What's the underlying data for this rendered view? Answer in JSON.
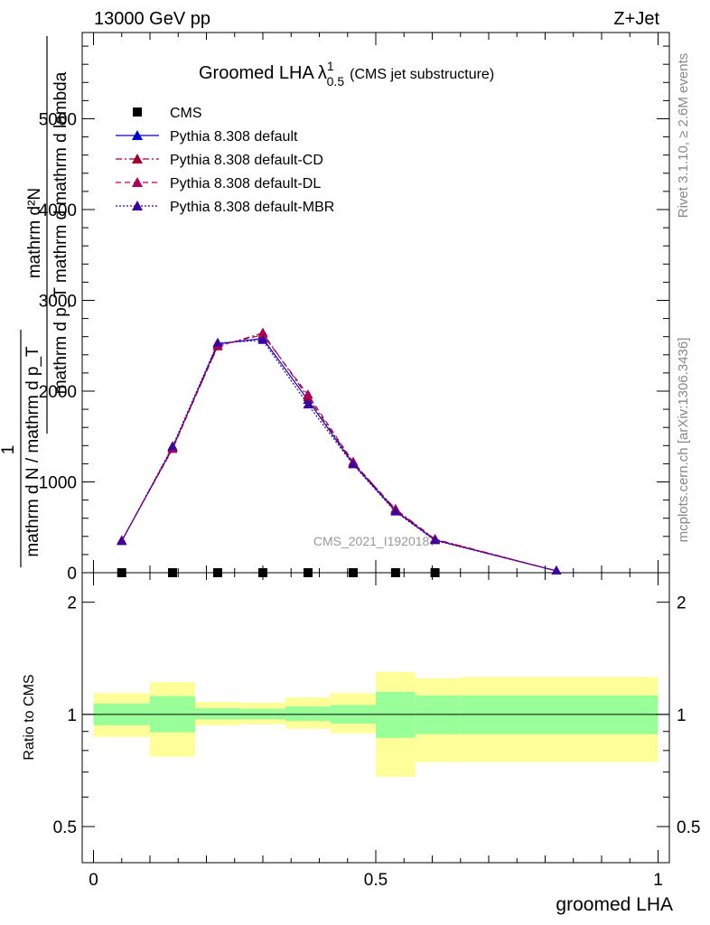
{
  "header": {
    "left": "13000 GeV pp",
    "right": "Z+Jet"
  },
  "title": {
    "main": "Groomed LHA",
    "lambda": "λ",
    "sup": "1",
    "sub": "0.5",
    "suffix": "(CMS jet substructure)"
  },
  "side_labels": {
    "rivet": "Rivet 3.1.10, ≥ 2.6M events",
    "mcplots": "mcplots.cern.ch [arXiv:1306.3436]"
  },
  "watermark": "CMS_2021_I1920187",
  "ylabel_main": {
    "numerator": "mathrm d²N",
    "denominator": "mathrm d p_T mathrm d mathrm d lambda",
    "prefix_num": "1",
    "prefix_den": "mathrm d N / mathrm d p_T"
  },
  "ylabel_ratio": "Ratio to CMS",
  "xlabel": "groomed LHA",
  "colors": {
    "cms": "#000000",
    "default": "#0000cc",
    "cd": "#a0002a",
    "dl": "#b0005a",
    "mbr": "#3a00a0",
    "band_inner": "#99ff99",
    "band_outer": "#ffff99"
  },
  "chart_data": {
    "type": "line",
    "x_ticks": [
      "0",
      "0.5",
      "1"
    ],
    "y_ticks_main": [
      "0",
      "1000",
      "2000",
      "3000",
      "4000",
      "5000"
    ],
    "y_ticks_ratio": [
      "0.5",
      "1",
      "2"
    ],
    "xlim": [
      -0.02,
      1.02
    ],
    "ylim_main": [
      0,
      5950
    ],
    "ylim_ratio": [
      0.4,
      2.4
    ],
    "ratio_log_scale": true,
    "legend_position": "top-left",
    "legend": [
      {
        "key": "cms",
        "label": "CMS",
        "marker": "square",
        "line": "none"
      },
      {
        "key": "default",
        "label": "Pythia 8.308 default",
        "marker": "triangle",
        "line": "solid"
      },
      {
        "key": "cd",
        "label": "Pythia 8.308 default-CD",
        "marker": "triangle",
        "line": "dashdot"
      },
      {
        "key": "dl",
        "label": "Pythia 8.308 default-DL",
        "marker": "triangle",
        "line": "dashed"
      },
      {
        "key": "mbr",
        "label": "Pythia 8.308 default-MBR",
        "marker": "triangle",
        "line": "dotted"
      }
    ],
    "cms": {
      "x": [
        0.05,
        0.14,
        0.22,
        0.3,
        0.38,
        0.46,
        0.535,
        0.605
      ],
      "y": [
        0,
        0,
        0,
        0,
        0,
        0,
        0,
        0
      ]
    },
    "series": [
      {
        "key": "default",
        "x": [
          0.05,
          0.14,
          0.22,
          0.3,
          0.38,
          0.46,
          0.535,
          0.605,
          0.82
        ],
        "y": [
          350,
          1370,
          2520,
          2580,
          1900,
          1200,
          680,
          360,
          20
        ]
      },
      {
        "key": "cd",
        "x": [
          0.05,
          0.14,
          0.22,
          0.3,
          0.38,
          0.46,
          0.535,
          0.605,
          0.82
        ],
        "y": [
          350,
          1380,
          2490,
          2640,
          1930,
          1210,
          700,
          370,
          20
        ]
      },
      {
        "key": "dl",
        "x": [
          0.05,
          0.14,
          0.22,
          0.3,
          0.38,
          0.46,
          0.535,
          0.605,
          0.82
        ],
        "y": [
          355,
          1360,
          2500,
          2620,
          1960,
          1220,
          690,
          365,
          20
        ]
      },
      {
        "key": "mbr",
        "x": [
          0.05,
          0.14,
          0.22,
          0.3,
          0.38,
          0.46,
          0.535,
          0.605,
          0.82
        ],
        "y": [
          345,
          1390,
          2530,
          2560,
          1850,
          1190,
          670,
          355,
          20
        ]
      }
    ],
    "ratio_bands": [
      {
        "x0": 0.0,
        "x1": 0.1,
        "inner": [
          0.935,
          1.07
        ],
        "outer": [
          0.87,
          1.14
        ]
      },
      {
        "x0": 0.1,
        "x1": 0.18,
        "inner": [
          0.895,
          1.12
        ],
        "outer": [
          0.77,
          1.22
        ]
      },
      {
        "x0": 0.18,
        "x1": 0.26,
        "inner": [
          0.97,
          1.04
        ],
        "outer": [
          0.935,
          1.08
        ]
      },
      {
        "x0": 0.26,
        "x1": 0.34,
        "inner": [
          0.97,
          1.035
        ],
        "outer": [
          0.94,
          1.075
        ]
      },
      {
        "x0": 0.34,
        "x1": 0.42,
        "inner": [
          0.96,
          1.05
        ],
        "outer": [
          0.915,
          1.11
        ]
      },
      {
        "x0": 0.42,
        "x1": 0.5,
        "inner": [
          0.945,
          1.06
        ],
        "outer": [
          0.89,
          1.14
        ]
      },
      {
        "x0": 0.5,
        "x1": 0.57,
        "inner": [
          0.865,
          1.15
        ],
        "outer": [
          0.68,
          1.3
        ]
      },
      {
        "x0": 0.57,
        "x1": 0.65,
        "inner": [
          0.885,
          1.125
        ],
        "outer": [
          0.745,
          1.25
        ]
      },
      {
        "x0": 0.65,
        "x1": 1.0,
        "inner": [
          0.885,
          1.125
        ],
        "outer": [
          0.745,
          1.26
        ]
      }
    ]
  }
}
